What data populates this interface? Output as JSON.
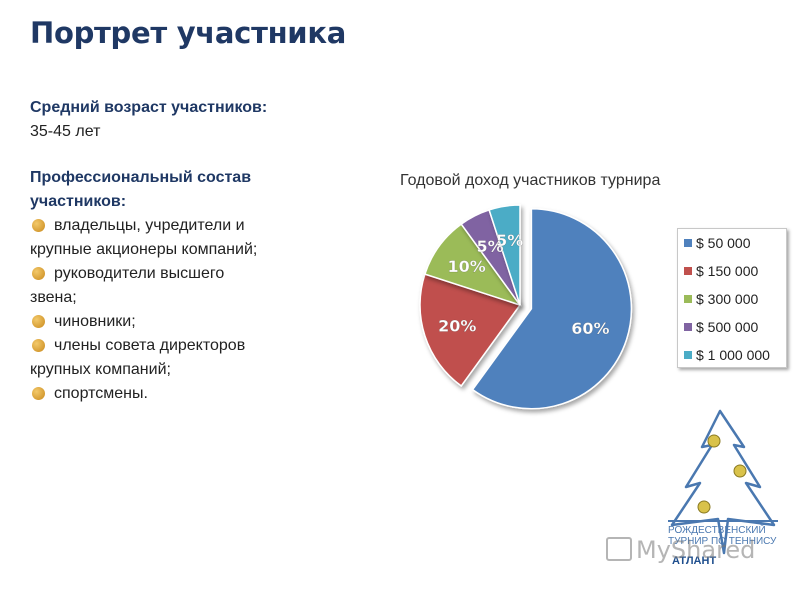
{
  "title": "Портрет участника",
  "age": {
    "label": "Средний возраст участников:",
    "value": "35-45 лет"
  },
  "professions": {
    "label_line1": "Профессиональный состав",
    "label_line2": "участников:",
    "items": [
      {
        "line1": "владельцы, учредители и",
        "line2": "крупные акционеры компаний;"
      },
      {
        "line1": "руководители высшего",
        "line2": "звена;"
      },
      {
        "line1": "чиновники;",
        "line2": ""
      },
      {
        "line1": "члены совета директоров",
        "line2": "крупных компаний;"
      },
      {
        "line1": "спортсмены.",
        "line2": ""
      }
    ]
  },
  "chart_data": {
    "type": "pie",
    "title": "Годовой доход участников турнира",
    "categories": [
      "$ 50 000",
      "$ 150 000",
      "$ 300 000",
      "$ 500 000",
      "$ 1 000 000"
    ],
    "values": [
      60,
      20,
      10,
      5,
      5
    ],
    "labels": [
      "60%",
      "20%",
      "10%",
      "5%",
      "5%"
    ],
    "colors": [
      "#4f81bd",
      "#c0504d",
      "#9bbb59",
      "#8064a2",
      "#4bacc6"
    ],
    "exploded": [
      0
    ],
    "legend": "right"
  },
  "logo": {
    "text": "Рождественский турнир по теннису",
    "brand": "АТЛАНТ"
  },
  "watermark": "MyShared"
}
